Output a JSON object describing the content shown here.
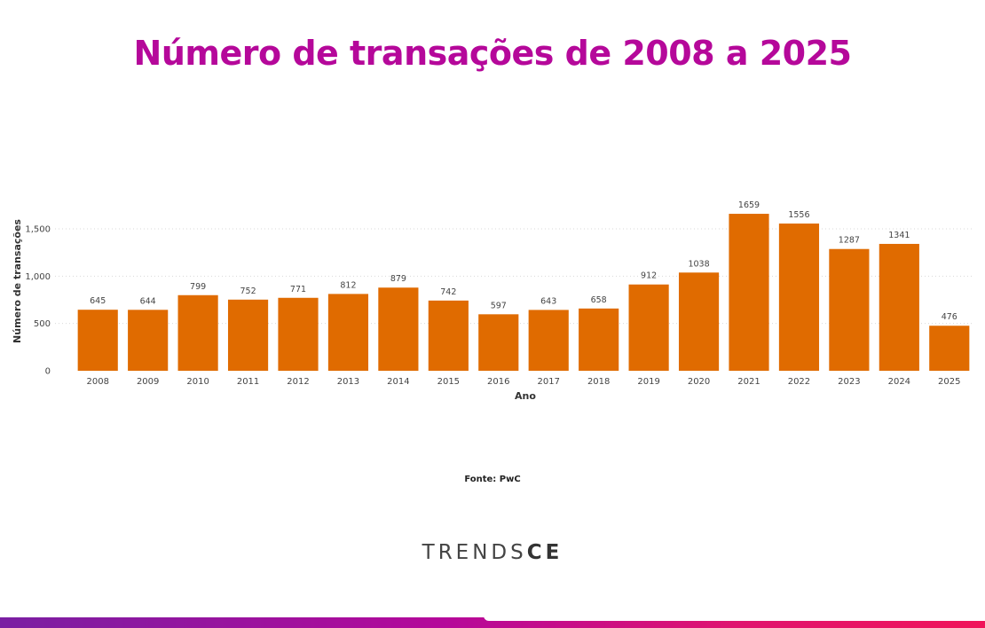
{
  "title": "Número de transações de 2008 a 2025",
  "source": "Fonte: PwC",
  "brand": {
    "light": "TRENDS",
    "bold": "CE"
  },
  "colors": {
    "title": "#b5089a",
    "bar": "#e06b00",
    "gradient_start": "#7a1fa2",
    "gradient_end": "#f0145a"
  },
  "chart_data": {
    "type": "bar",
    "title": "",
    "xlabel": "Ano",
    "ylabel": "Número de transações",
    "categories": [
      "2008",
      "2009",
      "2010",
      "2011",
      "2012",
      "2013",
      "2014",
      "2015",
      "2016",
      "2017",
      "2018",
      "2019",
      "2020",
      "2021",
      "2022",
      "2023",
      "2024",
      "2025"
    ],
    "values": [
      645,
      644,
      799,
      752,
      771,
      812,
      879,
      742,
      597,
      643,
      658,
      912,
      1038,
      1659,
      1556,
      1287,
      1341,
      476
    ],
    "ylim": [
      0,
      1600
    ],
    "yticks": [
      {
        "value": 0,
        "label": "0"
      },
      {
        "value": 500,
        "label": "500"
      },
      {
        "value": 1000,
        "label": "1,000"
      },
      {
        "value": 1500,
        "label": "1,500"
      }
    ],
    "grid": true,
    "legend": "none"
  }
}
